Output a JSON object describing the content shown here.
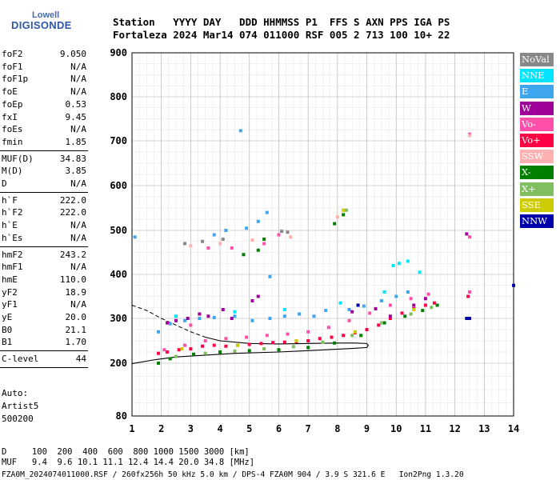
{
  "logo": {
    "top": "Lowell",
    "main": "DIGISONDE"
  },
  "header": {
    "line1": "Station   YYYY DAY   DDD HHMMSS P1  FFS S AXN PPS IGA PS",
    "line2": "Fortaleza 2024 Mar14 074 011000 RSF 005 2 713 100 10+ 22"
  },
  "params": [
    {
      "key": "foF2",
      "value": "9.050"
    },
    {
      "key": "foF1",
      "value": "N/A"
    },
    {
      "key": "foF1p",
      "value": "N/A"
    },
    {
      "key": "foE",
      "value": "N/A"
    },
    {
      "key": "foEp",
      "value": "0.53"
    },
    {
      "key": "fxI",
      "value": "9.45"
    },
    {
      "key": "foEs",
      "value": "N/A"
    },
    {
      "key": "fmin",
      "value": "1.85"
    },
    {
      "key": "MUF(D)",
      "value": "34.83"
    },
    {
      "key": "M(D)",
      "value": "3.85"
    },
    {
      "key": "D",
      "value": "N/A"
    },
    {
      "key": "h`F",
      "value": "222.0"
    },
    {
      "key": "h`F2",
      "value": "222.0"
    },
    {
      "key": "h`E",
      "value": "N/A"
    },
    {
      "key": "h`Es",
      "value": "N/A"
    },
    {
      "key": "hmF2",
      "value": "243.2"
    },
    {
      "key": "hmF1",
      "value": "N/A"
    },
    {
      "key": "hmE",
      "value": "110.0"
    },
    {
      "key": "yF2",
      "value": "18.9"
    },
    {
      "key": "yF1",
      "value": "N/A"
    },
    {
      "key": "yE",
      "value": "20.0"
    },
    {
      "key": "B0",
      "value": "21.1"
    },
    {
      "key": "B1",
      "value": "1.70"
    },
    {
      "key": "C-level",
      "value": "44"
    }
  ],
  "auto": {
    "line1": "Auto:",
    "line2": "Artist5",
    "line3": "500200"
  },
  "legend": [
    {
      "label": "NoVal",
      "color": "#888888"
    },
    {
      "label": "NNE",
      "color": "#00e5ff"
    },
    {
      "label": "E",
      "color": "#3da6ef"
    },
    {
      "label": "W",
      "color": "#a0009a"
    },
    {
      "label": "Vo-",
      "color": "#ff4fa8"
    },
    {
      "label": "Vo+",
      "color": "#ff0044"
    },
    {
      "label": "SSW",
      "color": "#ffb0b0"
    },
    {
      "label": "X-",
      "color": "#008000"
    },
    {
      "label": "X+",
      "color": "#7fbf5f"
    },
    {
      "label": "SSE",
      "color": "#cccc00"
    },
    {
      "label": "NNW",
      "color": "#0000aa"
    }
  ],
  "footer": {
    "line1": "D     100  200  400  600  800 1000 1500 3000 [km]",
    "line2": "MUF   9.4  9.6 10.1 11.1 12.4 14.4 20.0 34.8 [MHz]",
    "line3": "FZA0M_2024074011000.RSF / 260fx256h 50 kHz 5.0 km / DPS-4 FZA0M 904 / 3.9 S 321.6 E   Ion2Png 1.3.20"
  },
  "chart_data": {
    "type": "scatter",
    "x_ticks": [
      1,
      2,
      3,
      4,
      5,
      6,
      7,
      8,
      9,
      10,
      11,
      12,
      13,
      14
    ],
    "y_ticks": [
      80,
      200,
      300,
      400,
      500,
      600,
      700,
      800,
      900
    ],
    "xlim": [
      1,
      14
    ],
    "ylim": [
      80,
      900
    ],
    "grid": true,
    "series": [
      {
        "name": "Vo+",
        "color": "#ff0044",
        "points": [
          [
            1.9,
            222
          ],
          [
            2.2,
            225
          ],
          [
            2.6,
            230
          ],
          [
            3.0,
            232
          ],
          [
            3.4,
            238
          ],
          [
            3.8,
            240
          ],
          [
            4.2,
            238
          ],
          [
            4.6,
            240
          ],
          [
            5.0,
            242
          ],
          [
            5.4,
            244
          ],
          [
            5.8,
            246
          ],
          [
            6.2,
            247
          ],
          [
            6.6,
            248
          ],
          [
            7.0,
            250
          ],
          [
            7.4,
            255
          ],
          [
            7.8,
            258
          ],
          [
            8.2,
            262
          ],
          [
            8.6,
            268
          ],
          [
            9.0,
            275
          ],
          [
            9.4,
            285
          ],
          [
            9.8,
            300
          ],
          [
            10.2,
            312
          ],
          [
            10.6,
            322
          ],
          [
            11.0,
            330
          ],
          [
            11.3,
            335
          ],
          [
            12.45,
            350
          ]
        ]
      },
      {
        "name": "Vo-",
        "color": "#ff4fa8",
        "points": [
          [
            2.1,
            230
          ],
          [
            2.8,
            240
          ],
          [
            3.5,
            250
          ],
          [
            4.2,
            255
          ],
          [
            4.9,
            258
          ],
          [
            5.6,
            262
          ],
          [
            6.3,
            265
          ],
          [
            7.0,
            270
          ],
          [
            7.7,
            280
          ],
          [
            8.4,
            295
          ],
          [
            9.1,
            312
          ],
          [
            9.8,
            330
          ],
          [
            10.5,
            345
          ],
          [
            11.1,
            355
          ],
          [
            12.5,
            360
          ],
          [
            12.5,
            485
          ],
          [
            12.5,
            715
          ],
          [
            3.0,
            285
          ],
          [
            3.6,
            460
          ],
          [
            4.4,
            460
          ],
          [
            5.5,
            470
          ],
          [
            6.0,
            490
          ]
        ]
      },
      {
        "name": "E",
        "color": "#3da6ef",
        "points": [
          [
            1.9,
            270
          ],
          [
            2.3,
            288
          ],
          [
            2.8,
            295
          ],
          [
            3.3,
            300
          ],
          [
            3.8,
            302
          ],
          [
            4.5,
            305
          ],
          [
            5.1,
            295
          ],
          [
            5.7,
            300
          ],
          [
            6.2,
            305
          ],
          [
            6.7,
            310
          ],
          [
            7.2,
            305
          ],
          [
            7.6,
            318
          ],
          [
            8.4,
            320
          ],
          [
            8.9,
            328
          ],
          [
            9.5,
            340
          ],
          [
            10.0,
            350
          ],
          [
            10.4,
            360
          ],
          [
            3.8,
            490
          ],
          [
            4.2,
            500
          ],
          [
            4.9,
            505
          ],
          [
            5.3,
            520
          ],
          [
            5.6,
            540
          ],
          [
            5.7,
            395
          ],
          [
            4.7,
            723
          ],
          [
            1.1,
            485
          ]
        ]
      },
      {
        "name": "NNE",
        "color": "#00e5ff",
        "points": [
          [
            2.5,
            305
          ],
          [
            3.3,
            310
          ],
          [
            4.5,
            315
          ],
          [
            6.2,
            320
          ],
          [
            8.1,
            335
          ],
          [
            9.6,
            360
          ],
          [
            9.9,
            420
          ],
          [
            10.1,
            425
          ],
          [
            10.4,
            430
          ],
          [
            10.8,
            405
          ]
        ]
      },
      {
        "name": "W",
        "color": "#a0009a",
        "points": [
          [
            2.2,
            290
          ],
          [
            2.5,
            295
          ],
          [
            2.9,
            300
          ],
          [
            3.3,
            310
          ],
          [
            3.6,
            305
          ],
          [
            4.1,
            320
          ],
          [
            4.4,
            300
          ],
          [
            5.1,
            340
          ],
          [
            5.3,
            350
          ],
          [
            8.5,
            315
          ],
          [
            9.3,
            322
          ],
          [
            9.8,
            305
          ],
          [
            10.6,
            330
          ],
          [
            11.0,
            345
          ],
          [
            12.4,
            492
          ]
        ]
      },
      {
        "name": "X-",
        "color": "#008000",
        "points": [
          [
            1.9,
            200
          ],
          [
            2.3,
            210
          ],
          [
            3.1,
            220
          ],
          [
            4.0,
            225
          ],
          [
            5.0,
            228
          ],
          [
            6.0,
            230
          ],
          [
            7.0,
            235
          ],
          [
            7.9,
            245
          ],
          [
            8.8,
            262
          ],
          [
            9.6,
            290
          ],
          [
            10.3,
            305
          ],
          [
            10.9,
            318
          ],
          [
            11.4,
            330
          ],
          [
            4.8,
            445
          ],
          [
            5.3,
            455
          ],
          [
            5.5,
            480
          ],
          [
            7.9,
            515
          ],
          [
            8.2,
            535
          ]
        ]
      },
      {
        "name": "X+",
        "color": "#7fbf5f",
        "points": [
          [
            2.5,
            215
          ],
          [
            3.5,
            222
          ],
          [
            4.5,
            227
          ],
          [
            5.5,
            232
          ],
          [
            6.5,
            237
          ],
          [
            7.5,
            247
          ],
          [
            8.5,
            262
          ],
          [
            9.5,
            290
          ],
          [
            10.5,
            310
          ],
          [
            11.2,
            325
          ],
          [
            8.3,
            545
          ]
        ]
      },
      {
        "name": "SSW",
        "color": "#ffb0b0",
        "points": [
          [
            3.0,
            465
          ],
          [
            4.0,
            470
          ],
          [
            5.1,
            478
          ],
          [
            6.4,
            485
          ],
          [
            8.0,
            530
          ],
          [
            12.5,
            712
          ]
        ]
      },
      {
        "name": "SSE",
        "color": "#cccc00",
        "points": [
          [
            2.7,
            232
          ],
          [
            4.6,
            240
          ],
          [
            6.6,
            250
          ],
          [
            8.6,
            270
          ],
          [
            10.6,
            320
          ],
          [
            8.2,
            545
          ]
        ]
      },
      {
        "name": "NNW",
        "color": "#0000aa",
        "points": [
          [
            12.4,
            300
          ],
          [
            12.5,
            300
          ],
          [
            14.0,
            375
          ],
          [
            8.7,
            330
          ]
        ]
      },
      {
        "name": "NoVal",
        "color": "#888888",
        "points": [
          [
            2.8,
            470
          ],
          [
            3.4,
            475
          ],
          [
            4.1,
            480
          ],
          [
            6.1,
            498
          ],
          [
            6.3,
            496
          ]
        ]
      }
    ],
    "trace": [
      [
        1.0,
        330
      ],
      [
        1.5,
        318
      ],
      [
        2.0,
        300
      ],
      [
        2.5,
        285
      ],
      [
        3.0,
        270
      ],
      [
        3.5,
        258
      ],
      [
        4.0,
        250
      ],
      [
        5.0,
        244
      ],
      [
        6.0,
        243
      ],
      [
        7.0,
        244
      ],
      [
        8.0,
        245
      ],
      [
        8.6,
        245
      ],
      [
        9.0,
        244
      ],
      [
        9.05,
        240
      ],
      [
        9.0,
        235
      ],
      [
        8.5,
        233
      ],
      [
        7.0,
        228
      ],
      [
        6.0,
        225
      ],
      [
        4.5,
        222
      ],
      [
        3.5,
        218
      ],
      [
        2.5,
        214
      ],
      [
        1.8,
        208
      ],
      [
        1.0,
        199
      ]
    ]
  }
}
